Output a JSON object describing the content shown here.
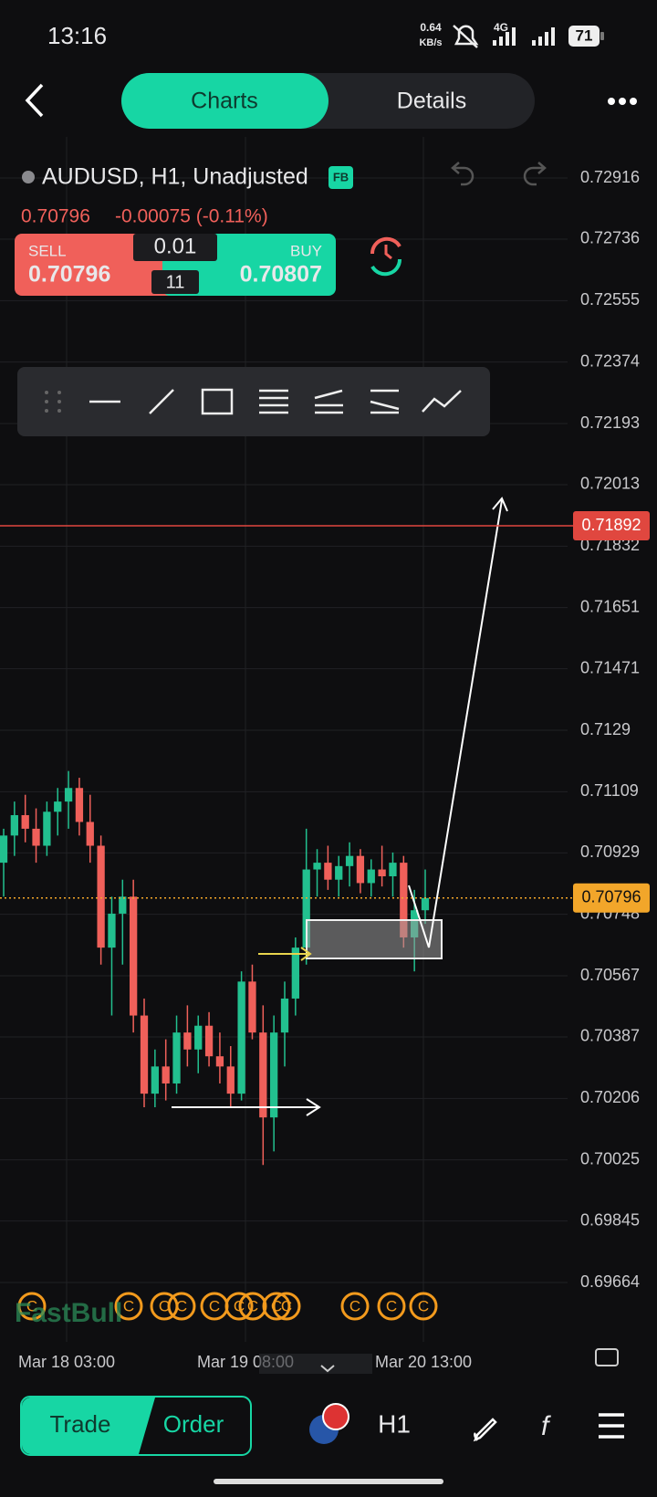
{
  "status_bar": {
    "time": "13:16",
    "speed": "0.64",
    "speed_unit": "KB/s",
    "network": "4G",
    "battery": "71"
  },
  "tabs": [
    "Charts",
    "Details"
  ],
  "symbol": {
    "name": "AUDUSD, H1, Unadjusted",
    "badge": "FB",
    "price": 0.70796,
    "change": "-0.00075 (-0.11%)"
  },
  "trade_panel": {
    "sell_label": "SELL",
    "sell_price": 0.70796,
    "lot": 0.01,
    "spread": 11,
    "buy_label": "BUY",
    "buy_price": 0.70807
  },
  "chart_data": {
    "type": "candlestick",
    "watermark": "FastBull",
    "event_icon": "C",
    "price_axis": [
      0.72916,
      0.72736,
      0.72555,
      0.72374,
      0.72193,
      0.72013,
      0.71832,
      0.71651,
      0.71471,
      0.7129,
      0.71109,
      0.70929,
      0.70748,
      0.70567,
      0.70387,
      0.70206,
      0.70025,
      0.69845,
      0.69664
    ],
    "alert_line": 0.71892,
    "current_price": 0.70796,
    "time_axis": [
      "Mar 18 03:00",
      "Mar 19 08:00",
      "Mar 20 13:00"
    ],
    "candles": [
      [
        0.709,
        0.71,
        0.708,
        0.7098
      ],
      [
        0.7098,
        0.7108,
        0.7092,
        0.7104
      ],
      [
        0.7104,
        0.711,
        0.7096,
        0.71
      ],
      [
        0.71,
        0.7106,
        0.709,
        0.7095
      ],
      [
        0.7095,
        0.7108,
        0.7092,
        0.7105
      ],
      [
        0.7105,
        0.7112,
        0.7098,
        0.7108
      ],
      [
        0.7108,
        0.7117,
        0.71,
        0.7112
      ],
      [
        0.7112,
        0.7115,
        0.7098,
        0.7102
      ],
      [
        0.7102,
        0.711,
        0.709,
        0.7095
      ],
      [
        0.7095,
        0.7098,
        0.706,
        0.7065
      ],
      [
        0.7065,
        0.708,
        0.7045,
        0.7075
      ],
      [
        0.7075,
        0.7085,
        0.706,
        0.708
      ],
      [
        0.708,
        0.7085,
        0.704,
        0.7045
      ],
      [
        0.7045,
        0.705,
        0.7018,
        0.7022
      ],
      [
        0.7022,
        0.7035,
        0.7018,
        0.703
      ],
      [
        0.703,
        0.7038,
        0.702,
        0.7025
      ],
      [
        0.7025,
        0.7045,
        0.7022,
        0.704
      ],
      [
        0.704,
        0.7048,
        0.703,
        0.7035
      ],
      [
        0.7035,
        0.7045,
        0.7028,
        0.7042
      ],
      [
        0.7042,
        0.7046,
        0.703,
        0.7033
      ],
      [
        0.7033,
        0.704,
        0.7025,
        0.703
      ],
      [
        0.703,
        0.7036,
        0.7018,
        0.7022
      ],
      [
        0.7022,
        0.7058,
        0.702,
        0.7055
      ],
      [
        0.7055,
        0.706,
        0.7038,
        0.704
      ],
      [
        0.704,
        0.7048,
        0.7001,
        0.7015
      ],
      [
        0.7015,
        0.7045,
        0.7005,
        0.704
      ],
      [
        0.704,
        0.7055,
        0.703,
        0.705
      ],
      [
        0.705,
        0.7068,
        0.7045,
        0.7065
      ],
      [
        0.7065,
        0.71,
        0.706,
        0.7088
      ],
      [
        0.7088,
        0.7094,
        0.708,
        0.709
      ],
      [
        0.709,
        0.7095,
        0.7082,
        0.7085
      ],
      [
        0.7085,
        0.7092,
        0.708,
        0.7089
      ],
      [
        0.7089,
        0.7096,
        0.7083,
        0.7092
      ],
      [
        0.7092,
        0.7094,
        0.7081,
        0.7084
      ],
      [
        0.7084,
        0.7091,
        0.708,
        0.7088
      ],
      [
        0.7088,
        0.7095,
        0.7083,
        0.7086
      ],
      [
        0.7086,
        0.7093,
        0.708,
        0.709
      ],
      [
        0.709,
        0.7092,
        0.7065,
        0.7068
      ],
      [
        0.7068,
        0.7082,
        0.7058,
        0.7076
      ],
      [
        0.7076,
        0.7088,
        0.7072,
        0.70796
      ]
    ]
  },
  "bottom_bar": {
    "trade": "Trade",
    "order": "Order",
    "timeframe": "H1"
  }
}
